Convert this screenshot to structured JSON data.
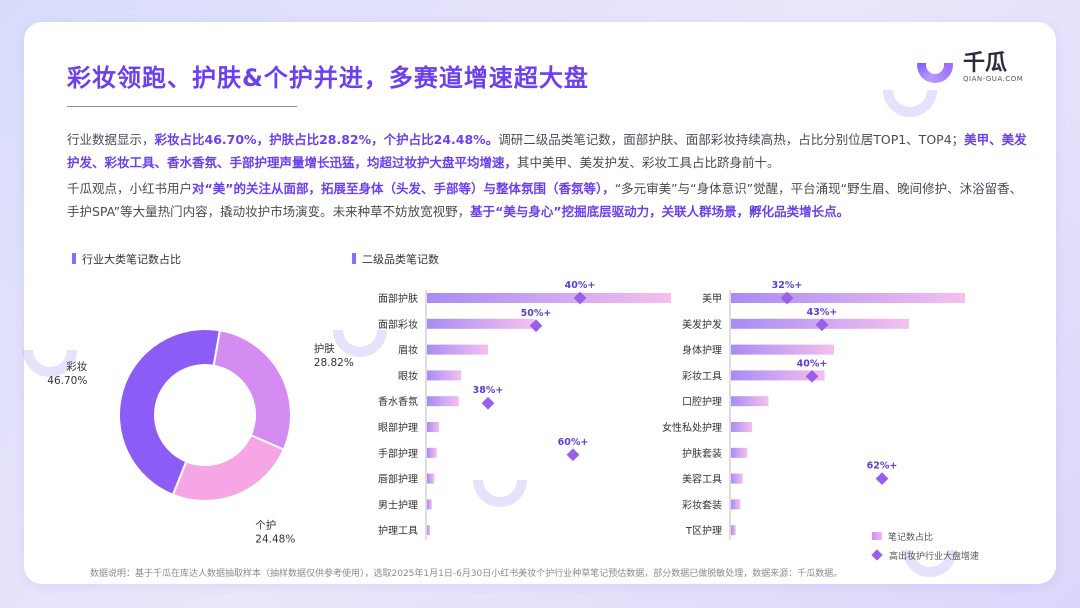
{
  "title": "彩妆领跑、护肤&个护并进，多赛道增速超大盘",
  "logo": {
    "name": "千瓜",
    "sub": "QIAN-GUA.COM"
  },
  "para1": {
    "s1": "行业数据显示，",
    "h1": "彩妆占比46.70%，护肤占比28.82%，个护占比24.48%。",
    "s2": "调研二级品类笔记数，面部护肤、面部彩妆持续高热，占比分别位居TOP1、TOP4；",
    "h2": "美甲、美发护发、彩妆工具、香水香氛、手部护理声量增长迅猛，均超过妆护大盘平均增速，",
    "s3": "其中美甲、美发护发、彩妆工具占比跻身前十。"
  },
  "para2": {
    "s1": "千瓜观点，小红书用户",
    "h1": "对“美”的关注从面部，拓展至身体（头发、手部等）与整体氛围（香氛等），",
    "s2": "“多元审美”与“身体意识”觉醒，平台涌现“野生眉、晚间修护、沐浴留香、手护SPA”等大量热门内容，撬动妆护市场演变。未来种草不妨放宽视野，",
    "h2": "基于“美与身心”挖掘底层驱动力，关联人群场景，孵化品类增长点。"
  },
  "section_labels": {
    "donut": "行业大类笔记数占比",
    "bars": "二级品类笔记数"
  },
  "legend": {
    "bar": "笔记数占比",
    "marker": "高出妆护行业大盘增速"
  },
  "footer": "数据说明：基于千瓜在库达人数据抽取样本（抽样数据仅供参考使用），选取2025年1月1日-6月30日小红书美妆个护行业种草笔记预估数据，部分数据已做脱敏处理，数据来源：千瓜数据。",
  "colors": {
    "accent": "#6c3ff0",
    "cosmetics": "#8b5cf6",
    "skincare": "#d58cf2",
    "personal_care": "#f6a6e4",
    "marker": "#9a5ee8"
  },
  "chart_data": [
    {
      "type": "pie",
      "title": "行业大类笔记数占比",
      "categories": [
        "彩妆",
        "护肤",
        "个护"
      ],
      "values": [
        46.7,
        28.82,
        24.48
      ],
      "labels": [
        "46.70%",
        "28.82%",
        "24.48%"
      ]
    },
    {
      "type": "bar",
      "title": "二级品类笔记数",
      "legend": [
        "笔记数占比",
        "高出妆护行业大盘增速"
      ],
      "panels": [
        {
          "categories": [
            "面部护肤",
            "面部彩妆",
            "眉妆",
            "眼妆",
            "香水香氛",
            "眼部护理",
            "手部护理",
            "唇部护理",
            "男士护理",
            "护理工具"
          ],
          "values": [
            100,
            44,
            25,
            14,
            13,
            5,
            4,
            3,
            2,
            1
          ],
          "markers": [
            {
              "category": "面部护肤",
              "label": "40%+"
            },
            {
              "category": "面部彩妆",
              "label": "50%+"
            },
            {
              "category": "香水香氛",
              "label": "38%+"
            },
            {
              "category": "手部护理",
              "label": "60%+"
            }
          ]
        },
        {
          "categories": [
            "美甲",
            "美发护发",
            "身体护理",
            "彩妆工具",
            "口腔护理",
            "女性私处护理",
            "护肤套装",
            "美容工具",
            "彩妆套装",
            "T区护理"
          ],
          "values": [
            100,
            76,
            44,
            40,
            16,
            9,
            7,
            5,
            4,
            2
          ],
          "markers": [
            {
              "category": "美甲",
              "label": "32%+"
            },
            {
              "category": "美发护发",
              "label": "43%+"
            },
            {
              "category": "彩妆工具",
              "label": "40%+"
            },
            {
              "category": "美容工具",
              "label": "62%+"
            }
          ]
        }
      ]
    }
  ]
}
